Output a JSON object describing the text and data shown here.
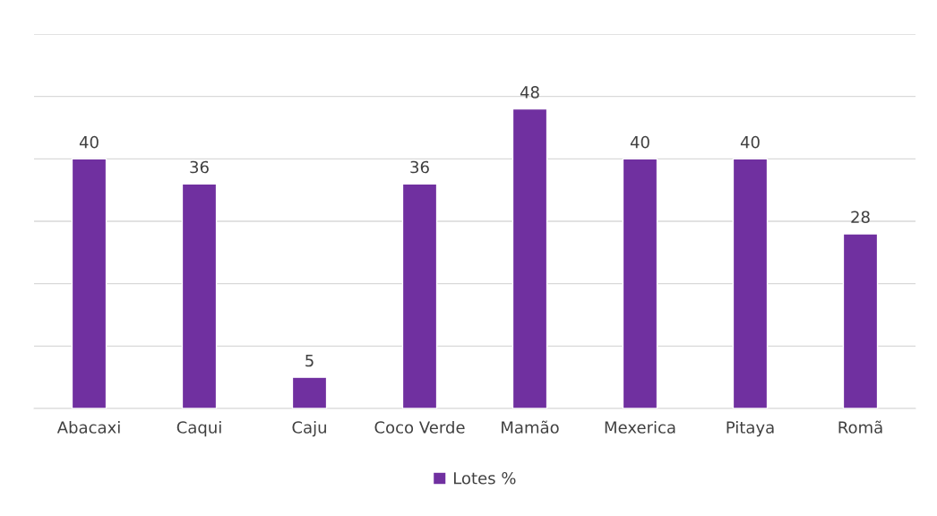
{
  "chart_data": {
    "type": "bar",
    "categories": [
      "Abacaxi",
      "Caqui",
      "Caju",
      "Coco Verde",
      "Mamão",
      "Mexerica",
      "Pitaya",
      "Romã"
    ],
    "series": [
      {
        "name": "Lotes %",
        "color": "#7030a0",
        "values": [
          40,
          36,
          5,
          36,
          48,
          40,
          40,
          28
        ]
      }
    ],
    "ylim": [
      0,
      60
    ],
    "yticks": [
      0,
      10,
      20,
      30,
      40,
      50,
      60
    ],
    "tick_labels": "x",
    "grid": "y",
    "legend": "bottom",
    "data_labels": true
  }
}
